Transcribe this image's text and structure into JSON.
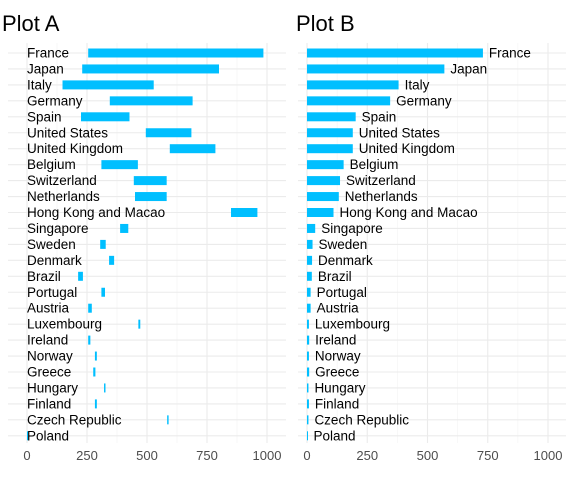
{
  "chart_data": [
    {
      "type": "bar",
      "title": "Plot A",
      "xlabel": "",
      "ylabel": "",
      "orientation": "horizontal",
      "bar_style": "floating-range",
      "xlim": [
        0,
        1000
      ],
      "xticks": [
        0,
        250,
        500,
        750,
        1000
      ],
      "xtick_labels": [
        "0",
        "250",
        "500",
        "750",
        "1000"
      ],
      "grid": true,
      "bar_color": "#00BFFF",
      "categories": [
        "France",
        "Japan",
        "Italy",
        "Germany",
        "Spain",
        "United States",
        "United Kingdom",
        "Belgium",
        "Switzerland",
        "Netherlands",
        "Hong Kong and Macao",
        "Singapore",
        "Sweden",
        "Denmark",
        "Brazil",
        "Portugal",
        "Austria",
        "Luxembourg",
        "Ireland",
        "Norway",
        "Greece",
        "Hungary",
        "Finland",
        "Czech Republic",
        "Poland"
      ],
      "ranges": [
        [
          255,
          985
        ],
        [
          230,
          800
        ],
        [
          148,
          528
        ],
        [
          345,
          690
        ],
        [
          225,
          427
        ],
        [
          495,
          685
        ],
        [
          595,
          785
        ],
        [
          310,
          462
        ],
        [
          445,
          582
        ],
        [
          450,
          582
        ],
        [
          850,
          960
        ],
        [
          388,
          422
        ],
        [
          305,
          328
        ],
        [
          342,
          363
        ],
        [
          213,
          233
        ],
        [
          310,
          325
        ],
        [
          255,
          270
        ],
        [
          464,
          472
        ],
        [
          255,
          264
        ],
        [
          283,
          291
        ],
        [
          276,
          285
        ],
        [
          321,
          327
        ],
        [
          283,
          291
        ],
        [
          584,
          590
        ],
        [
          0,
          2
        ]
      ]
    },
    {
      "type": "bar",
      "title": "Plot B",
      "xlabel": "",
      "ylabel": "",
      "orientation": "horizontal",
      "xlim": [
        0,
        1000
      ],
      "xticks": [
        0,
        250,
        500,
        750,
        1000
      ],
      "xtick_labels": [
        "0",
        "250",
        "500",
        "750",
        "1000"
      ],
      "grid": true,
      "bar_color": "#00BFFF",
      "categories": [
        "France",
        "Japan",
        "Italy",
        "Germany",
        "Spain",
        "United States",
        "United Kingdom",
        "Belgium",
        "Switzerland",
        "Netherlands",
        "Hong Kong and Macao",
        "Singapore",
        "Sweden",
        "Denmark",
        "Brazil",
        "Portugal",
        "Austria",
        "Luxembourg",
        "Ireland",
        "Norway",
        "Greece",
        "Hungary",
        "Finland",
        "Czech Republic",
        "Poland"
      ],
      "values": [
        730,
        570,
        380,
        345,
        202,
        190,
        190,
        152,
        137,
        132,
        110,
        34,
        23,
        21,
        20,
        15,
        15,
        8,
        9,
        8,
        9,
        6,
        8,
        6,
        2
      ]
    }
  ]
}
